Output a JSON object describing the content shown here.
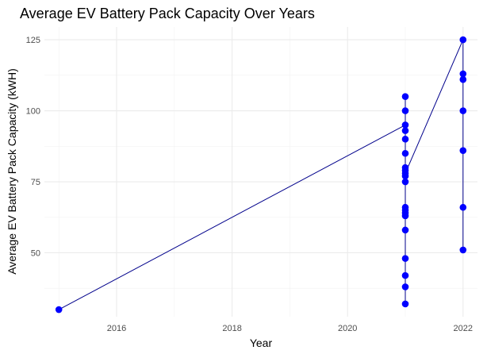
{
  "chart_data": {
    "type": "line",
    "title": "Average EV Battery Pack Capacity Over Years",
    "xlabel": "Year",
    "ylabel": "Average EV Battery Pack Capacity (kWH)",
    "xlim": [
      2014.75,
      2022.25
    ],
    "ylim": [
      27.5,
      129.5
    ],
    "x_ticks": [
      2016,
      2018,
      2020,
      2022
    ],
    "x_minor": [
      2015,
      2017,
      2019,
      2021
    ],
    "y_ticks": [
      50,
      75,
      100,
      125
    ],
    "y_minor": [
      37.5,
      62.5,
      87.5,
      112.5
    ],
    "grid": true,
    "legend": "none",
    "colors": {
      "line": "#00008b",
      "points": "#0000ff",
      "grid_major": "#ebebeb",
      "grid_minor": "#f2f2f2"
    },
    "series": [
      {
        "x": [
          2015,
          2021,
          2021,
          2021,
          2021,
          2021,
          2021,
          2021,
          2021,
          2021,
          2021,
          2021,
          2021,
          2021,
          2021,
          2021,
          2021,
          2021,
          2021,
          2021,
          2021,
          2022,
          2022,
          2022,
          2022,
          2022,
          2022,
          2022
        ],
        "y": [
          30,
          95,
          77,
          80,
          75,
          93,
          85,
          90,
          100,
          105,
          65,
          64,
          63,
          58,
          48,
          42,
          38,
          32,
          66,
          79,
          78,
          125,
          113,
          111,
          100,
          86,
          66,
          51
        ]
      }
    ]
  }
}
